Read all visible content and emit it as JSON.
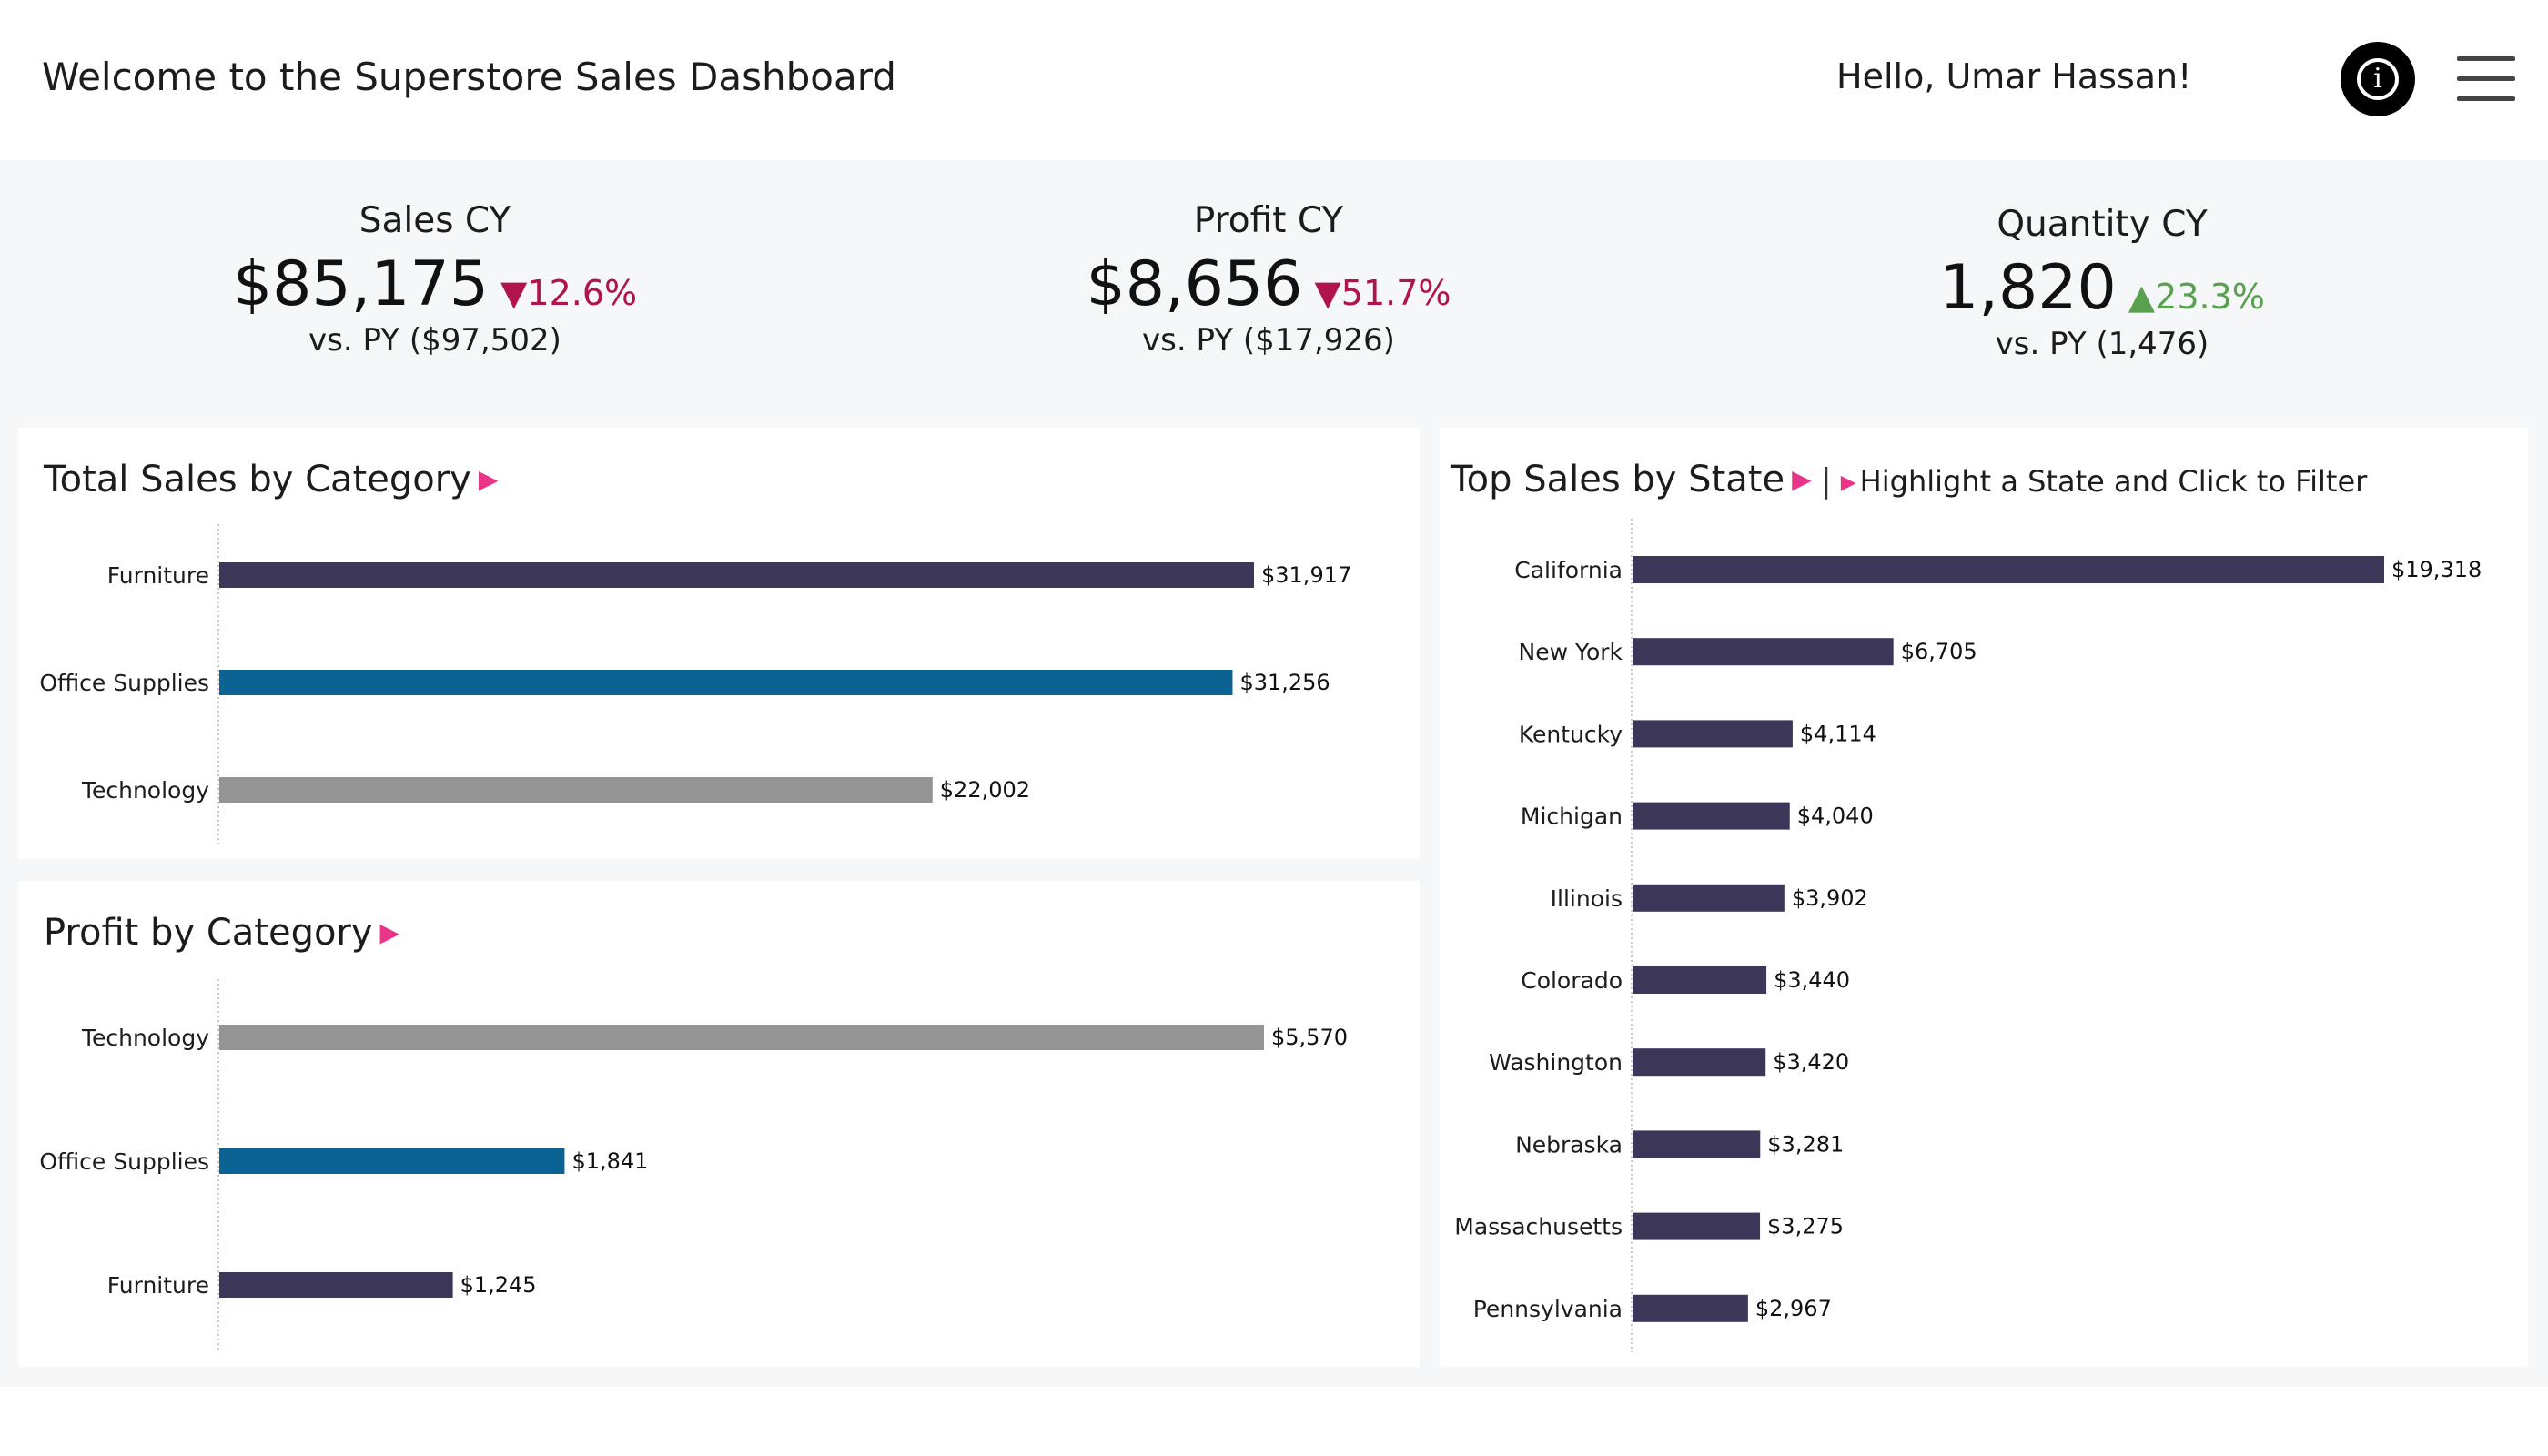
{
  "header": {
    "title": "Welcome to the Superstore Sales Dashboard",
    "greeting": "Hello, Umar Hassan!",
    "info_icon": "info-icon",
    "info_glyph": "i",
    "menu_icon": "hamburger-menu-icon"
  },
  "kpis": [
    {
      "label": "Sales CY",
      "value": "$85,175",
      "change": "12.6%",
      "direction": "down",
      "arrow": "▼",
      "previous": "vs. PY ($97,502)"
    },
    {
      "label": "Profit CY",
      "value": "$8,656",
      "change": "51.7%",
      "direction": "down",
      "arrow": "▼",
      "previous": "vs. PY ($17,926)"
    },
    {
      "label": "Quantity CY",
      "value": "1,820",
      "change": "23.3%",
      "direction": "up",
      "arrow": "▲",
      "previous": "vs. PY (1,476)"
    }
  ],
  "colors": {
    "furniture": "#3c3658",
    "office_supplies": "#0b6393",
    "technology": "#949494",
    "state_bar": "#3c3658",
    "decrease": "#b0144a",
    "increase": "#59a14f",
    "accent_triangle": "#e8358a"
  },
  "panels": {
    "sales_by_category": {
      "title": "Total Sales by Category",
      "marker": "▶"
    },
    "profit_by_category": {
      "title": "Profit by Category",
      "marker": "▶"
    },
    "sales_by_state": {
      "title": "Top Sales by State",
      "marker": "▶",
      "separator": "|",
      "hint_marker": "▶",
      "hint": "Highlight a State and Click to Filter"
    }
  },
  "chart_data": [
    {
      "type": "bar",
      "orientation": "horizontal",
      "title": "Total Sales by Category",
      "categories": [
        "Furniture",
        "Office Supplies",
        "Technology"
      ],
      "values": [
        31917,
        31256,
        22002
      ],
      "labels": [
        "$31,917",
        "$31,256",
        "$22,002"
      ],
      "colors": [
        "#3c3658",
        "#0b6393",
        "#949494"
      ]
    },
    {
      "type": "bar",
      "orientation": "horizontal",
      "title": "Profit by Category",
      "categories": [
        "Technology",
        "Office Supplies",
        "Furniture"
      ],
      "values": [
        5570,
        1841,
        1245
      ],
      "labels": [
        "$5,570",
        "$1,841",
        "$1,245"
      ],
      "colors": [
        "#949494",
        "#0b6393",
        "#3c3658"
      ]
    },
    {
      "type": "bar",
      "orientation": "horizontal",
      "title": "Top Sales by State",
      "categories": [
        "California",
        "New York",
        "Kentucky",
        "Michigan",
        "Illinois",
        "Colorado",
        "Washington",
        "Nebraska",
        "Massachusetts",
        "Pennsylvania"
      ],
      "values": [
        19318,
        6705,
        4114,
        4040,
        3902,
        3440,
        3420,
        3281,
        3275,
        2967
      ],
      "labels": [
        "$19,318",
        "$6,705",
        "$4,114",
        "$4,040",
        "$3,902",
        "$3,440",
        "$3,420",
        "$3,281",
        "$3,275",
        "$2,967"
      ],
      "colors": [
        "#3c3658"
      ]
    }
  ]
}
